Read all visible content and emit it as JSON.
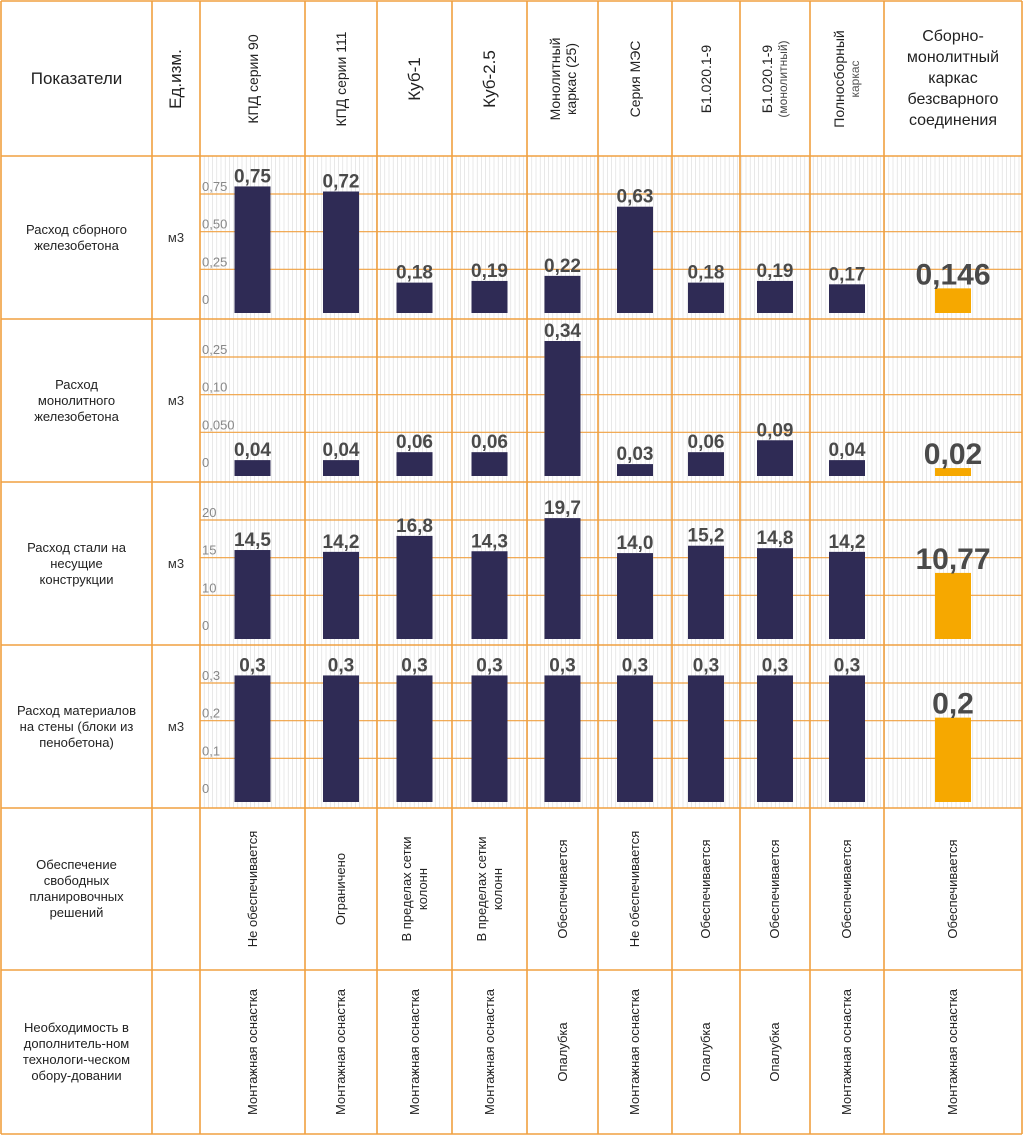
{
  "header": {
    "indicators": "Показатели",
    "unit": "Ед.изм.",
    "columns": [
      {
        "name": "КПД серии 90",
        "sub": ""
      },
      {
        "name": "КПД серии 111",
        "sub": ""
      },
      {
        "name": "Куб-1",
        "sub": ""
      },
      {
        "name": "Куб-2.5",
        "sub": ""
      },
      {
        "name": "Монолитный каркас (25)",
        "sub": ""
      },
      {
        "name": "Серия МЭС",
        "sub": ""
      },
      {
        "name": "Б1.020.1-9",
        "sub": ""
      },
      {
        "name": "Б1.020.1-9",
        "sub": "(монолитный)"
      },
      {
        "name": "Полносборный",
        "sub": "каркас"
      },
      {
        "name": "Сборно-монолитный каркас безсварного соединения",
        "sub": ""
      }
    ]
  },
  "colors": {
    "grid": "#f0a040",
    "bar": "#2f2b55",
    "highlight": "#f6a800"
  },
  "chart_data": [
    {
      "type": "bar",
      "label": "Расход сборного железобетона",
      "unit": "м3",
      "ticks": [
        "0,75",
        "0,50",
        "0,25",
        "0"
      ],
      "tick_values": [
        0.75,
        0.5,
        0.25,
        0
      ],
      "ylim": [
        0,
        0.8
      ],
      "values": [
        0.75,
        0.72,
        0.18,
        0.19,
        0.22,
        0.63,
        0.18,
        0.19,
        0.17,
        0.146
      ],
      "labels": [
        "0,75",
        "0,72",
        "0,18",
        "0,19",
        "0,22",
        "0,63",
        "0,18",
        "0,19",
        "0,17",
        "0,146"
      ]
    },
    {
      "type": "bar",
      "label": "Расход монолитного железобетона",
      "unit": "м3",
      "ticks": [
        "0,25",
        "0,10",
        "0,050",
        "0"
      ],
      "tick_values": [
        0.25,
        0.1,
        0.05,
        0
      ],
      "ylim": [
        0,
        0.34
      ],
      "values": [
        0.04,
        0.04,
        0.06,
        0.06,
        0.34,
        0.03,
        0.06,
        0.09,
        0.04,
        0.02
      ],
      "labels": [
        "0,04",
        "0,04",
        "0,06",
        "0,06",
        "0,34",
        "0,03",
        "0,06",
        "0,09",
        "0,04",
        "0,02"
      ]
    },
    {
      "type": "bar",
      "label": "Расход стали на несущие конструкции",
      "unit": "м3",
      "ticks": [
        "20",
        "15",
        "10",
        "0"
      ],
      "tick_values": [
        20,
        15,
        10,
        0
      ],
      "ylim": [
        0,
        22
      ],
      "values": [
        14.5,
        14.2,
        16.8,
        14.3,
        19.7,
        14.0,
        15.2,
        14.8,
        14.2,
        10.77
      ],
      "labels": [
        "14,5",
        "14,2",
        "16,8",
        "14,3",
        "19,7",
        "14,0",
        "15,2",
        "14,8",
        "14,2",
        "10,77"
      ]
    },
    {
      "type": "bar",
      "label": "Расход материалов на стены (блоки из пенобетона)",
      "unit": "м3",
      "ticks": [
        "0,3",
        "0,2",
        "0,1",
        "0"
      ],
      "tick_values": [
        0.3,
        0.2,
        0.1,
        0
      ],
      "ylim": [
        0,
        0.32
      ],
      "values": [
        0.3,
        0.3,
        0.3,
        0.3,
        0.3,
        0.3,
        0.3,
        0.3,
        0.3,
        0.2
      ],
      "labels": [
        "0,3",
        "0,3",
        "0,3",
        "0,3",
        "0,3",
        "0,3",
        "0,3",
        "0,3",
        "0,3",
        "0,2"
      ]
    }
  ],
  "text_rows": [
    {
      "label": "Обеспечение свободных планировочных решений",
      "values": [
        "Не обеспечивается",
        "Ограничено",
        "В пределах сетки колонн",
        "В пределах сетки колонн",
        "Обеспечивается",
        "Не обеспечивается",
        "Обеспечивается",
        "Обеспечивается",
        "Обеспечивается",
        "Обеспечивается"
      ]
    },
    {
      "label": "Необходимость в дополнитель-ном технологи-ческом обору-довании",
      "values": [
        "Монтажная оснастка",
        "Монтажная оснастка",
        "Монтажная оснастка",
        "Монтажная оснастка",
        "Опалубка",
        "Монтажная оснастка",
        "Опалубка",
        "Опалубка",
        "Монтажная оснастка",
        "Монтажная оснастка"
      ]
    }
  ]
}
